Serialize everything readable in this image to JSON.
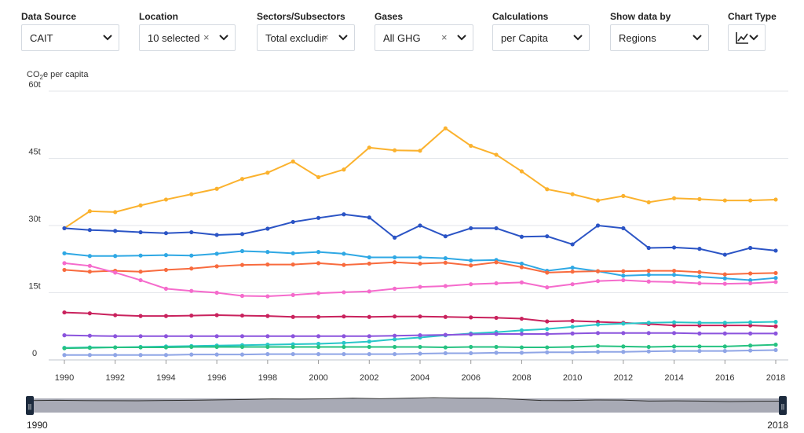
{
  "filters": [
    {
      "label": "Data Source",
      "value": "CAIT",
      "clearable": false,
      "icon": "chevron-down-icon"
    },
    {
      "label": "Location",
      "value": "10 selected",
      "clearable": true,
      "icon": "chevron-down-icon"
    },
    {
      "label": "Sectors/Subsectors",
      "value": "Total excludin",
      "clearable": true,
      "icon": "chevron-down-icon"
    },
    {
      "label": "Gases",
      "value": "All GHG",
      "clearable": true,
      "icon": "chevron-down-icon"
    },
    {
      "label": "Calculations",
      "value": "per Capita",
      "clearable": false,
      "icon": "chevron-down-icon"
    },
    {
      "label": "Show data by",
      "value": "Regions",
      "clearable": false,
      "icon": "chevron-down-icon"
    },
    {
      "label": "Chart Type",
      "value": "",
      "clearable": false,
      "icon": "line-chart-icon"
    }
  ],
  "clear_symbol": "×",
  "chart_data": {
    "type": "line",
    "ylabel_prefix": "CO",
    "ylabel_sub": "2",
    "ylabel_suffix": "e per capita",
    "ylim": [
      0,
      60
    ],
    "yticks": [
      0,
      15,
      30,
      45,
      60
    ],
    "ytick_labels": [
      "0",
      "15t",
      "30t",
      "45t",
      "60t"
    ],
    "xticks": [
      1990,
      1992,
      1994,
      1996,
      1998,
      2000,
      2002,
      2004,
      2006,
      2008,
      2010,
      2012,
      2014,
      2016,
      2018
    ],
    "x": [
      1990,
      1991,
      1992,
      1993,
      1994,
      1995,
      1996,
      1997,
      1998,
      1999,
      2000,
      2001,
      2002,
      2003,
      2004,
      2005,
      2006,
      2007,
      2008,
      2009,
      2010,
      2011,
      2012,
      2013,
      2014,
      2015,
      2016,
      2017,
      2018
    ],
    "grid": true,
    "series": [
      {
        "color": "#fbb22e",
        "values": [
          29.4,
          33.2,
          33.0,
          34.5,
          35.8,
          37.0,
          38.2,
          40.4,
          41.8,
          44.3,
          40.8,
          42.5,
          47.4,
          46.8,
          46.7,
          51.7,
          47.8,
          45.8,
          42.1,
          38.1,
          37.0,
          35.6,
          36.6,
          35.2,
          36.1,
          35.9,
          35.6,
          35.6,
          35.8
        ]
      },
      {
        "color": "#2b54c5",
        "values": [
          29.4,
          29.0,
          28.8,
          28.5,
          28.3,
          28.5,
          27.9,
          28.1,
          29.3,
          30.8,
          31.7,
          32.5,
          31.8,
          27.3,
          30.0,
          27.6,
          29.4,
          29.4,
          27.5,
          27.6,
          25.8,
          30.0,
          29.4,
          25.0,
          25.1,
          24.8,
          23.5,
          25.0,
          24.4
        ]
      },
      {
        "color": "#2fa8e4",
        "values": [
          23.8,
          23.2,
          23.2,
          23.3,
          23.4,
          23.3,
          23.7,
          24.3,
          24.1,
          23.8,
          24.1,
          23.7,
          22.9,
          22.9,
          22.9,
          22.7,
          22.2,
          22.3,
          21.5,
          19.9,
          20.6,
          19.8,
          18.8,
          19.0,
          19.0,
          18.6,
          18.2,
          17.8,
          18.3
        ]
      },
      {
        "color": "#f86b3e",
        "values": [
          20.1,
          19.7,
          19.9,
          19.7,
          20.1,
          20.4,
          20.9,
          21.2,
          21.3,
          21.3,
          21.6,
          21.2,
          21.5,
          21.8,
          21.5,
          21.7,
          21.1,
          21.8,
          20.7,
          19.5,
          19.7,
          19.8,
          19.8,
          19.9,
          19.9,
          19.6,
          19.1,
          19.3,
          19.4
        ]
      },
      {
        "color": "#f56bcc",
        "values": [
          21.6,
          21.0,
          19.5,
          17.8,
          15.9,
          15.4,
          15.0,
          14.3,
          14.2,
          14.5,
          14.9,
          15.1,
          15.3,
          15.9,
          16.3,
          16.5,
          16.9,
          17.1,
          17.3,
          16.2,
          16.9,
          17.6,
          17.8,
          17.5,
          17.4,
          17.1,
          17.0,
          17.1,
          17.4
        ]
      },
      {
        "color": "#c9225d",
        "values": [
          10.6,
          10.4,
          10.0,
          9.8,
          9.8,
          9.9,
          10.0,
          9.9,
          9.8,
          9.6,
          9.6,
          9.7,
          9.6,
          9.7,
          9.7,
          9.6,
          9.5,
          9.4,
          9.2,
          8.6,
          8.7,
          8.5,
          8.3,
          8.0,
          7.7,
          7.7,
          7.7,
          7.7,
          7.5
        ]
      },
      {
        "color": "#28c6c8",
        "values": [
          2.7,
          2.8,
          2.8,
          2.9,
          3.0,
          3.1,
          3.2,
          3.3,
          3.4,
          3.5,
          3.6,
          3.8,
          4.1,
          4.6,
          5.0,
          5.5,
          5.9,
          6.2,
          6.6,
          6.9,
          7.4,
          7.9,
          8.1,
          8.3,
          8.4,
          8.3,
          8.3,
          8.4,
          8.5
        ]
      },
      {
        "color": "#8b54dd",
        "values": [
          5.5,
          5.4,
          5.3,
          5.3,
          5.3,
          5.3,
          5.3,
          5.3,
          5.3,
          5.3,
          5.3,
          5.3,
          5.3,
          5.4,
          5.5,
          5.6,
          5.7,
          5.8,
          5.8,
          5.8,
          5.9,
          6.0,
          6.0,
          6.0,
          6.0,
          5.9,
          5.9,
          5.9,
          5.9
        ]
      },
      {
        "color": "#26c281",
        "values": [
          2.6,
          2.7,
          2.8,
          2.8,
          2.8,
          2.9,
          2.9,
          2.9,
          2.9,
          2.9,
          2.9,
          2.9,
          2.9,
          2.9,
          2.9,
          2.8,
          2.9,
          2.9,
          2.8,
          2.8,
          2.9,
          3.1,
          3.0,
          2.9,
          3.0,
          3.0,
          3.0,
          3.2,
          3.4
        ]
      },
      {
        "color": "#8fa5e6",
        "values": [
          1.1,
          1.1,
          1.1,
          1.1,
          1.1,
          1.2,
          1.2,
          1.2,
          1.3,
          1.3,
          1.3,
          1.3,
          1.3,
          1.3,
          1.4,
          1.5,
          1.5,
          1.6,
          1.6,
          1.7,
          1.7,
          1.8,
          1.8,
          1.9,
          2.0,
          2.0,
          2.0,
          2.1,
          2.2
        ]
      }
    ]
  },
  "range_slider": {
    "start_label": "1990",
    "end_label": "2018",
    "handle_symbol": "||"
  }
}
